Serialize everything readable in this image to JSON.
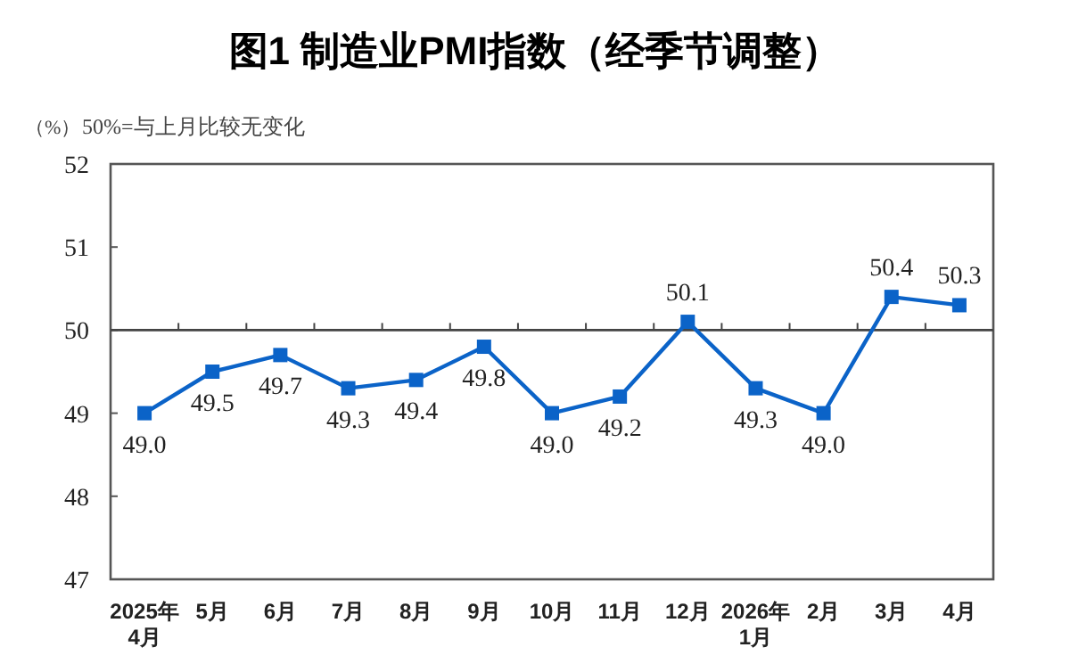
{
  "chart_data": {
    "type": "line",
    "title": "图1 制造业PMI指数（经季节调整）",
    "ylabel": "（%）",
    "annotations": [
      "50%=与上月比较无变化"
    ],
    "categories": [
      "2025年\n4月",
      "5月",
      "6月",
      "7月",
      "8月",
      "9月",
      "10月",
      "11月",
      "12月",
      "2026年\n1月",
      "2月",
      "3月",
      "4月"
    ],
    "series": [
      {
        "color": "#0b63c8",
        "values": [
          49.0,
          49.5,
          49.7,
          49.3,
          49.4,
          49.8,
          49.0,
          49.2,
          50.1,
          49.3,
          49.0,
          50.4,
          50.3
        ],
        "value_labels": [
          "49.0",
          "49.5",
          "49.7",
          "49.3",
          "49.4",
          "49.8",
          "49.0",
          "49.2",
          "50.1",
          "49.3",
          "49.0",
          "50.4",
          "50.3"
        ]
      }
    ],
    "ylim": [
      47,
      52
    ],
    "yticks": [
      47,
      48,
      49,
      50,
      51,
      52
    ],
    "ref_lines": [
      {
        "axis": "y",
        "value": 50
      }
    ],
    "marker": "square"
  }
}
